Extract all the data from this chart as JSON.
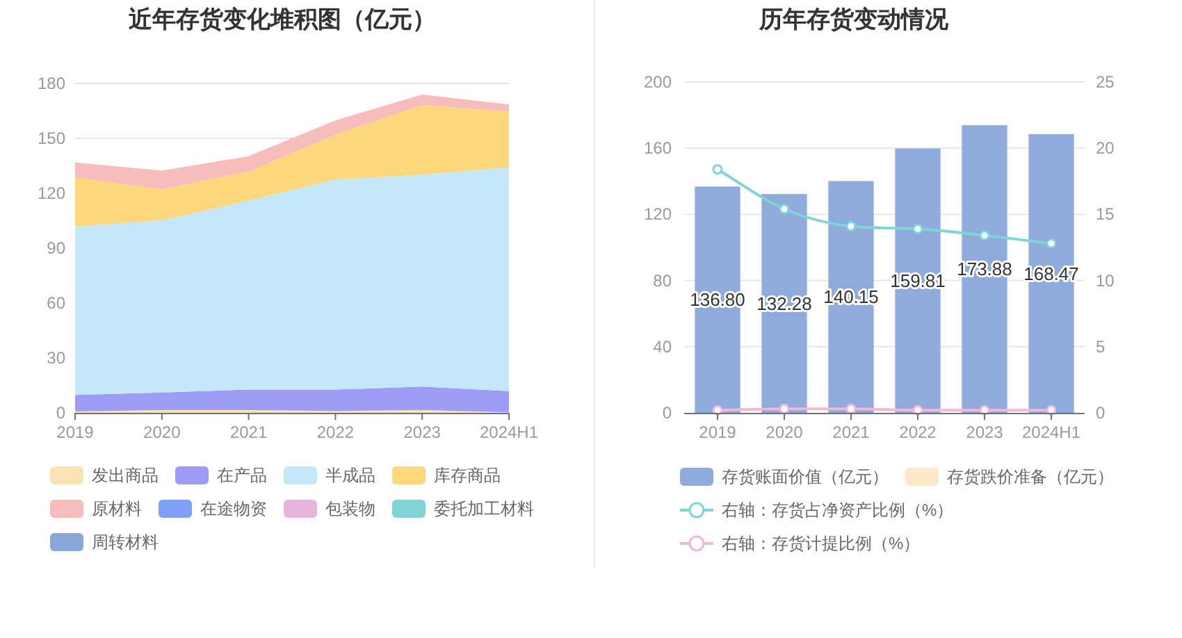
{
  "chart_data": [
    {
      "type": "area",
      "title": "近年存货变化堆积图（亿元）",
      "categories": [
        "2019",
        "2020",
        "2021",
        "2022",
        "2023",
        "2024H1"
      ],
      "stacked": true,
      "ylim": [
        0,
        180
      ],
      "yticks": [
        0,
        30,
        60,
        90,
        120,
        150,
        180
      ],
      "grid": "y",
      "legend": "bottom",
      "series": [
        {
          "name": "发出商品",
          "color": "#fde3b3",
          "values": [
            0.8,
            1.5,
            1.5,
            1.0,
            1.5,
            0.3
          ]
        },
        {
          "name": "在产品",
          "color": "#9d9df6",
          "values": [
            9.0,
            9.6,
            11.2,
            11.7,
            12.8,
            11.6
          ]
        },
        {
          "name": "半成品",
          "color": "#c4e7fa",
          "values": [
            92.1,
            94.1,
            103.2,
            114.8,
            115.8,
            122.2
          ]
        },
        {
          "name": "库存商品",
          "color": "#fdd77b",
          "values": [
            26.6,
            17.0,
            15.9,
            24.6,
            38.0,
            30.5
          ]
        },
        {
          "name": "原材料",
          "color": "#f7bcbc",
          "values": [
            8.3,
            10.1,
            8.4,
            7.7,
            5.8,
            3.9
          ]
        },
        {
          "name": "在途物资",
          "color": "#7ea0f8",
          "values": [
            null,
            null,
            null,
            null,
            null,
            null
          ]
        },
        {
          "name": "包装物",
          "color": "#e8b4dc",
          "values": [
            null,
            null,
            null,
            null,
            null,
            null
          ]
        },
        {
          "name": "委托加工材料",
          "color": "#7fd3d8",
          "values": [
            null,
            null,
            null,
            null,
            null,
            null
          ]
        },
        {
          "name": "周转材料",
          "color": "#88a9d8",
          "values": [
            null,
            null,
            null,
            null,
            null,
            null
          ]
        }
      ]
    },
    {
      "type": "bar",
      "title": "历年存货变动情况",
      "categories": [
        "2019",
        "2020",
        "2021",
        "2022",
        "2023",
        "2024H1"
      ],
      "stacked": true,
      "ylim": [
        0,
        200
      ],
      "yticks": [
        0,
        40,
        80,
        120,
        160,
        200
      ],
      "y2lim": [
        0,
        25
      ],
      "y2ticks": [
        0,
        5,
        10,
        15,
        20,
        25
      ],
      "grid": "y",
      "legend": "bottom",
      "series": [
        {
          "name": "存货账面价值（亿元）",
          "color": "#8eabdb",
          "values": [
            136.8,
            132.28,
            140.15,
            159.81,
            173.88,
            168.47
          ],
          "value_labels": [
            "136.80",
            "132.28",
            "140.15",
            "159.81",
            "173.88",
            "168.47"
          ]
        },
        {
          "name": "存货跌价准备（亿元）",
          "color": "#fde9c9",
          "values": [
            null,
            null,
            null,
            null,
            null,
            null
          ]
        },
        {
          "name": "右轴：存货占净资产比例（%）",
          "type": "line",
          "axis": "y2",
          "color": "#7fd5d5",
          "marker": "circle",
          "values": [
            18.4,
            15.4,
            14.1,
            13.9,
            13.4,
            12.8
          ]
        },
        {
          "name": "右轴：存货计提比例（%）",
          "type": "line",
          "axis": "y2",
          "color": "#f3b6d9",
          "marker": "circle",
          "values": [
            0.2,
            0.3,
            0.3,
            0.2,
            0.2,
            0.2
          ]
        }
      ]
    }
  ]
}
